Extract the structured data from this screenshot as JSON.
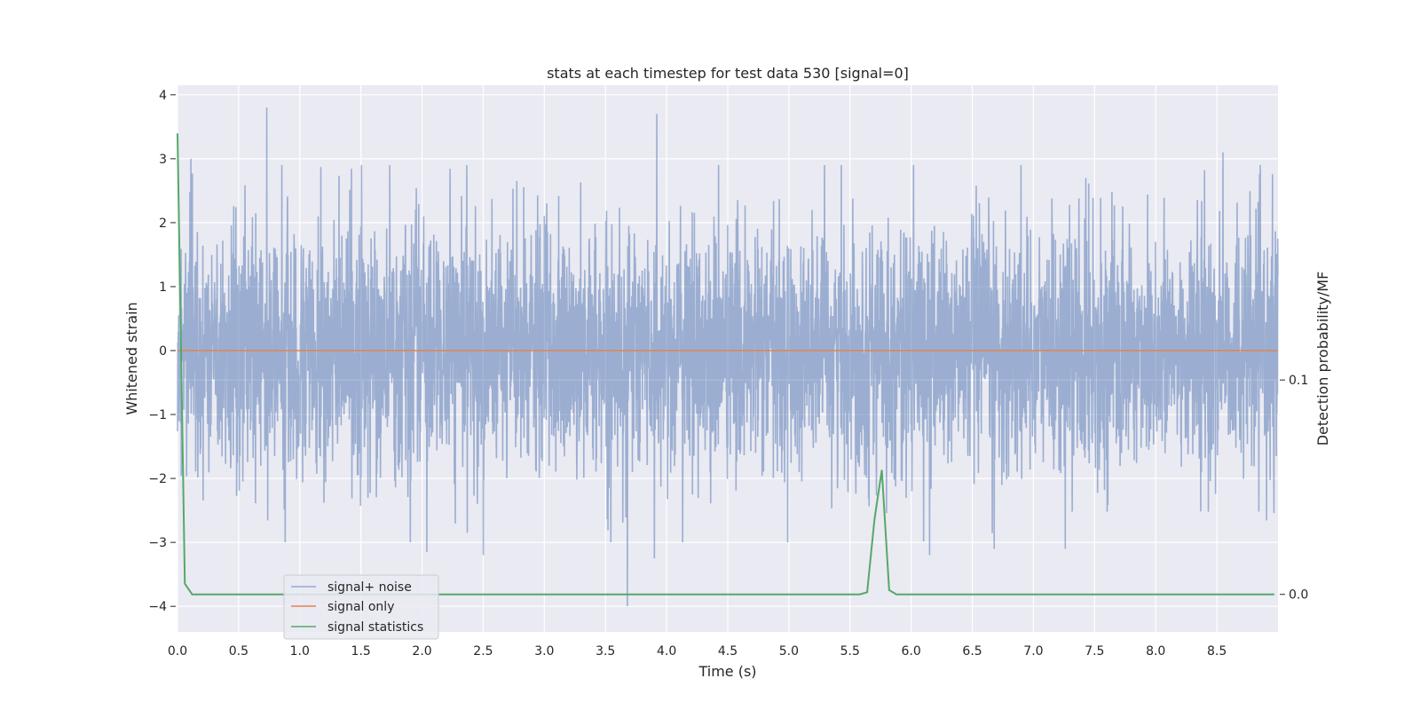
{
  "chart_data": {
    "type": "line",
    "title": "stats at each timestep for test data 530 [signal=0]",
    "xlabel": "Time (s)",
    "ylabel": "Whitened strain",
    "y2label": "Detection probability/MF",
    "xlim": [
      0.0,
      9.0
    ],
    "ylim": [
      -4.4,
      4.15
    ],
    "y2lim": [
      -0.0175,
      0.2375
    ],
    "xticks": [
      "0.0",
      "0.5",
      "1.0",
      "1.5",
      "2.0",
      "2.5",
      "3.0",
      "3.5",
      "4.0",
      "4.5",
      "5.0",
      "5.5",
      "6.0",
      "6.5",
      "7.0",
      "7.5",
      "8.0",
      "8.5"
    ],
    "yticks": [
      "4",
      "3",
      "2",
      "1",
      "0",
      "−1",
      "−2",
      "−3",
      "−4"
    ],
    "y2ticks": [
      "0.1",
      "0.0"
    ],
    "grid": true,
    "legend_position": "lower-left",
    "colors": {
      "background": "#eaeaf2",
      "grid": "#ffffff",
      "noise": "#4c72b0",
      "signal": "#dd8452",
      "stats": "#55a868"
    },
    "series": [
      {
        "name": "signal+ noise",
        "axis": "left",
        "description_values": {
          "noise_std": 0.95,
          "notable_peaks": [
            {
              "x": 0.73,
              "y": 3.8
            },
            {
              "x": 3.92,
              "y": 3.7
            },
            {
              "x": 8.55,
              "y": 3.1
            },
            {
              "x": 0.11,
              "y": 3.0
            },
            {
              "x": 3.68,
              "y": -4.0
            },
            {
              "x": 3.9,
              "y": -3.25
            },
            {
              "x": 2.5,
              "y": -3.2
            },
            {
              "x": 6.15,
              "y": -3.2
            },
            {
              "x": 2.04,
              "y": -3.15
            },
            {
              "x": 7.26,
              "y": -3.1
            },
            {
              "x": 6.68,
              "y": -3.1
            }
          ]
        }
      },
      {
        "name": "signal only",
        "axis": "left",
        "x": [
          0.0,
          9.0
        ],
        "y": [
          0.0,
          0.0
        ]
      },
      {
        "name": "signal statistics",
        "axis": "right",
        "x": [
          0.0,
          0.06,
          0.12,
          0.18,
          0.24,
          5.52,
          5.58,
          5.64,
          5.7,
          5.76,
          5.82,
          5.88,
          5.94,
          8.97
        ],
        "y": [
          0.215,
          0.005,
          0.0,
          0.0,
          0.0,
          0.0,
          0.0,
          0.001,
          0.035,
          0.058,
          0.002,
          0.0,
          0.0,
          0.0
        ]
      }
    ]
  }
}
